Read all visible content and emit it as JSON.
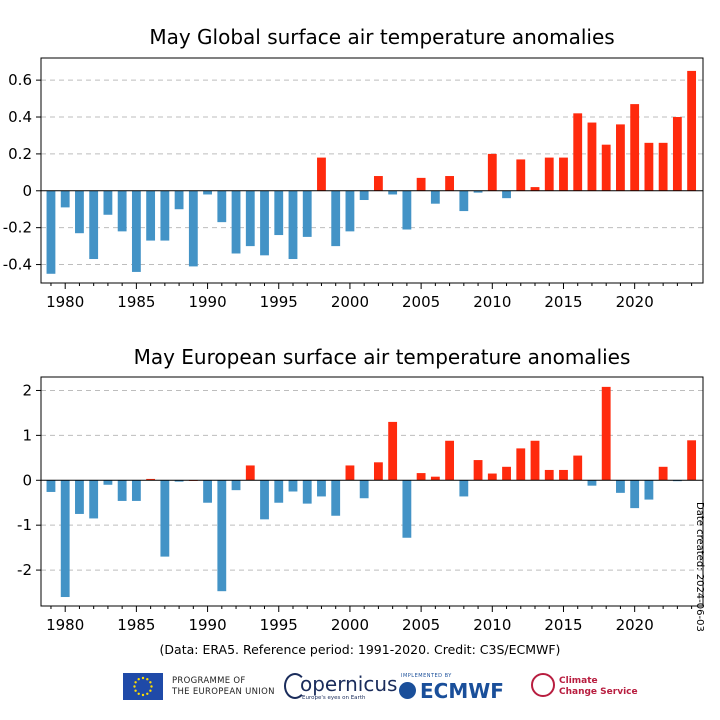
{
  "footer": {
    "credit": "(Data: ERA5.  Reference period: 1991-2020.  Credit: C3S/ECMWF)",
    "date_created": "Date created: 2024-06-03",
    "eu_line1": "PROGRAMME OF",
    "eu_line2": "THE EUROPEAN UNION",
    "copernicus": "opernicus",
    "copernicus_sub": "Europe's eyes on Earth",
    "ecmwf_small": "IMPLEMENTED BY",
    "ecmwf": "ECMWF",
    "c3s_line1": "Climate",
    "c3s_line2": "Change Service"
  },
  "colors": {
    "positive": "#ff2a0d",
    "negative": "#4393c6",
    "grid": "#bdbdbd"
  },
  "chart_data": [
    {
      "type": "bar",
      "title": "May Global surface air temperature anomalies",
      "ylabel": "",
      "x": [
        1979,
        1980,
        1981,
        1982,
        1983,
        1984,
        1985,
        1986,
        1987,
        1988,
        1989,
        1990,
        1991,
        1992,
        1993,
        1994,
        1995,
        1996,
        1997,
        1998,
        1999,
        2000,
        2001,
        2002,
        2003,
        2004,
        2005,
        2006,
        2007,
        2008,
        2009,
        2010,
        2011,
        2012,
        2013,
        2014,
        2015,
        2016,
        2017,
        2018,
        2019,
        2020,
        2021,
        2022,
        2023,
        2024
      ],
      "values": [
        -0.45,
        -0.09,
        -0.23,
        -0.37,
        -0.13,
        -0.22,
        -0.44,
        -0.27,
        -0.27,
        -0.1,
        -0.41,
        -0.02,
        -0.17,
        -0.34,
        -0.3,
        -0.35,
        -0.24,
        -0.37,
        -0.25,
        0.18,
        -0.3,
        -0.22,
        -0.05,
        0.08,
        -0.02,
        -0.21,
        0.07,
        -0.07,
        0.08,
        -0.11,
        -0.01,
        0.2,
        -0.04,
        0.17,
        0.02,
        0.18,
        0.18,
        0.42,
        0.37,
        0.25,
        0.36,
        0.47,
        0.26,
        0.26,
        0.4,
        0.65
      ],
      "ylim": [
        -0.5,
        0.72
      ],
      "yticks": [
        -0.4,
        -0.2,
        0,
        0.2,
        0.4,
        0.6
      ],
      "ytick_labels": [
        "-0.4",
        "-0.2",
        "0",
        "0.2",
        "0.4",
        "0.6"
      ],
      "xticks": [
        1980,
        1985,
        1990,
        1995,
        2000,
        2005,
        2010,
        2015,
        2020
      ],
      "xlim": [
        1978.3,
        2024.8
      ],
      "grid": true
    },
    {
      "type": "bar",
      "title": "May European surface air temperature anomalies",
      "ylabel": "",
      "x": [
        1979,
        1980,
        1981,
        1982,
        1983,
        1984,
        1985,
        1986,
        1987,
        1988,
        1989,
        1990,
        1991,
        1992,
        1993,
        1994,
        1995,
        1996,
        1997,
        1998,
        1999,
        2000,
        2001,
        2002,
        2003,
        2004,
        2005,
        2006,
        2007,
        2008,
        2009,
        2010,
        2011,
        2012,
        2013,
        2014,
        2015,
        2016,
        2017,
        2018,
        2019,
        2020,
        2021,
        2022,
        2023,
        2024
      ],
      "values": [
        -0.26,
        -2.6,
        -0.75,
        -0.85,
        -0.1,
        -0.46,
        -0.46,
        0.03,
        -1.7,
        -0.03,
        0.0,
        -0.5,
        -2.47,
        -0.22,
        0.33,
        -0.87,
        -0.5,
        -0.25,
        -0.52,
        -0.36,
        -0.79,
        0.33,
        -0.4,
        0.4,
        1.3,
        -1.28,
        0.16,
        0.08,
        0.88,
        -0.36,
        0.45,
        0.15,
        0.3,
        0.71,
        0.88,
        0.23,
        0.23,
        0.55,
        -0.12,
        2.08,
        -0.28,
        -0.62,
        -0.43,
        0.3,
        -0.02,
        0.89
      ],
      "ylim": [
        -2.8,
        2.3
      ],
      "yticks": [
        -2,
        -1,
        0,
        1,
        2
      ],
      "ytick_labels": [
        "-2",
        "-1",
        "0",
        "1",
        "2"
      ],
      "xticks": [
        1980,
        1985,
        1990,
        1995,
        2000,
        2005,
        2010,
        2015,
        2020
      ],
      "xlim": [
        1978.3,
        2024.8
      ],
      "grid": true
    }
  ]
}
